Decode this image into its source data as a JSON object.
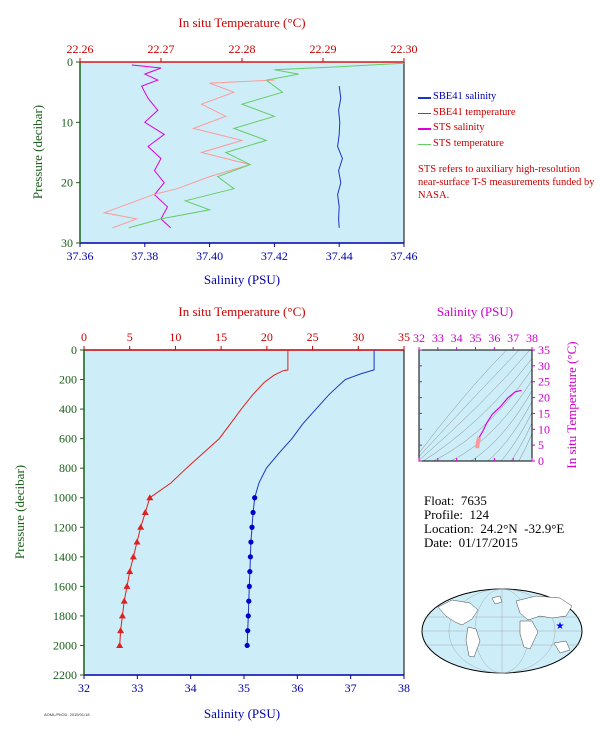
{
  "colors": {
    "plot_bg": "#cdeef8",
    "salinity_axis": "#0000aa",
    "temperature_axis": "#cc0000",
    "pressure_axis": "#1a5e1a",
    "inset_axis": "#cc00cc",
    "sbe_salinity": "#1a36c8",
    "sbe_temperature": "#e02020",
    "sts_salinity": "#dd00dd",
    "sts_temperature": "#66cc66",
    "sts_temp_pink": "#ff9999"
  },
  "legend": {
    "items": [
      {
        "label": "SBE41 salinity",
        "color": "#1a36c8"
      },
      {
        "label": "SBE41 temperature",
        "color": "#e02020"
      },
      {
        "label": "STS salinity",
        "color": "#dd00dd"
      },
      {
        "label": "STS temperature",
        "color": "#66cc66"
      }
    ],
    "note": "STS refers to auxiliary high-resolution near-surface T-S measurements funded by NASA."
  },
  "float_info": {
    "float": "Float:  7635",
    "profile": "Profile:  124",
    "location": "Location:  24.2°N  -32.9°E",
    "date": "Date:  01/17/2015"
  },
  "credit": "AOML/PhOD, 2015/01/18",
  "chart_data": [
    {
      "type": "line",
      "name": "near-surface profile",
      "top_axis_label": "In situ Temperature (°C)",
      "bottom_axis_label": "Salinity (PSU)",
      "ylabel": "Pressure (decibar)",
      "temp_lim": [
        22.26,
        22.3
      ],
      "temp_ticks": [
        "22.26",
        "22.27",
        "22.28",
        "22.29",
        "22.30"
      ],
      "sal_lim": [
        37.36,
        37.46
      ],
      "sal_ticks": [
        "37.36",
        "37.38",
        "37.40",
        "37.42",
        "37.44",
        "37.46"
      ],
      "ylim": [
        0,
        30
      ],
      "y_ticks": [
        "0",
        "10",
        "20",
        "30"
      ],
      "series": [
        {
          "key": "sbe_temperature",
          "axis": "temp",
          "points": [
            [
              22.26,
              0
            ],
            [
              22.3,
              0
            ]
          ]
        },
        {
          "key": "sbe_salinity",
          "axis": "sal",
          "points": [
            [
              37.44,
              4
            ],
            [
              37.4405,
              6
            ],
            [
              37.4398,
              8
            ],
            [
              37.4402,
              10
            ],
            [
              37.44,
              12
            ],
            [
              37.4395,
              14
            ],
            [
              37.441,
              16
            ],
            [
              37.4398,
              18
            ],
            [
              37.4405,
              20
            ],
            [
              37.4395,
              22
            ],
            [
              37.44,
              24
            ],
            [
              37.4398,
              26
            ],
            [
              37.44,
              27.5
            ]
          ]
        },
        {
          "key": "sts_salinity",
          "axis": "sal",
          "points": [
            [
              37.376,
              0.5
            ],
            [
              37.385,
              1
            ],
            [
              37.38,
              2
            ],
            [
              37.384,
              3
            ],
            [
              37.379,
              4
            ],
            [
              37.381,
              6
            ],
            [
              37.384,
              8
            ],
            [
              37.38,
              10
            ],
            [
              37.386,
              12
            ],
            [
              37.381,
              14
            ],
            [
              37.385,
              16
            ],
            [
              37.383,
              18
            ],
            [
              37.386,
              20
            ],
            [
              37.383,
              22
            ],
            [
              37.387,
              24
            ],
            [
              37.385,
              26
            ],
            [
              37.388,
              27.5
            ]
          ]
        },
        {
          "key": "sts_temp_pink",
          "axis": "temp",
          "points": [
            [
              22.284,
              3
            ],
            [
              22.276,
              3.5
            ],
            [
              22.279,
              5
            ],
            [
              22.275,
              7
            ],
            [
              22.278,
              9
            ],
            [
              22.274,
              11
            ],
            [
              22.28,
              13
            ],
            [
              22.275,
              15
            ],
            [
              22.281,
              17
            ],
            [
              22.276,
              19
            ],
            [
              22.272,
              21
            ],
            [
              22.269,
              22
            ],
            [
              22.266,
              23.5
            ],
            [
              22.263,
              25
            ],
            [
              22.267,
              26
            ],
            [
              22.264,
              27.5
            ]
          ]
        },
        {
          "key": "sts_temperature",
          "axis": "temp",
          "points": [
            [
              22.3,
              0.2
            ],
            [
              22.292,
              0.8
            ],
            [
              22.284,
              1.3
            ],
            [
              22.287,
              2
            ],
            [
              22.283,
              3
            ],
            [
              22.285,
              5
            ],
            [
              22.28,
              7
            ],
            [
              22.284,
              9
            ],
            [
              22.279,
              11
            ],
            [
              22.283,
              13
            ],
            [
              22.278,
              15
            ],
            [
              22.281,
              17
            ],
            [
              22.277,
              19
            ],
            [
              22.279,
              21
            ],
            [
              22.273,
              23
            ],
            [
              22.276,
              24.5
            ],
            [
              22.27,
              26
            ],
            [
              22.266,
              27.5
            ]
          ]
        }
      ]
    },
    {
      "type": "line",
      "name": "full-depth profile",
      "top_axis_label": "In situ Temperature (°C)",
      "bottom_axis_label": "Salinity (PSU)",
      "ylabel": "Pressure (decibar)",
      "temp_lim": [
        0,
        35
      ],
      "temp_ticks": [
        "0",
        "5",
        "10",
        "15",
        "20",
        "25",
        "30",
        "35"
      ],
      "sal_lim": [
        32,
        38
      ],
      "sal_ticks": [
        "32",
        "33",
        "34",
        "35",
        "36",
        "37",
        "38"
      ],
      "ylim": [
        0,
        2200
      ],
      "y_ticks": [
        "0",
        "200",
        "400",
        "600",
        "800",
        "1000",
        "1200",
        "1400",
        "1600",
        "1800",
        "2000",
        "2200"
      ],
      "series": [
        {
          "key": "sbe_temperature",
          "axis": "temp",
          "points": [
            [
              22.3,
              0
            ],
            [
              22.3,
              135
            ],
            [
              21.8,
              140
            ],
            [
              20.8,
              170
            ],
            [
              19.7,
              220
            ],
            [
              18.5,
              300
            ],
            [
              17.2,
              400
            ],
            [
              16.0,
              500
            ],
            [
              14.8,
              600
            ],
            [
              13.0,
              700
            ],
            [
              11.2,
              800
            ],
            [
              9.5,
              900
            ],
            [
              7.2,
              1000
            ],
            [
              6.7,
              1100
            ],
            [
              6.2,
              1200
            ],
            [
              5.8,
              1300
            ],
            [
              5.4,
              1400
            ],
            [
              5.0,
              1500
            ],
            [
              4.7,
              1600
            ],
            [
              4.4,
              1700
            ],
            [
              4.2,
              1800
            ],
            [
              4.0,
              1900
            ],
            [
              3.9,
              2000
            ]
          ]
        },
        {
          "key": "sbe_salinity",
          "axis": "sal",
          "points": [
            [
              37.44,
              0
            ],
            [
              37.44,
              135
            ],
            [
              37.2,
              160
            ],
            [
              36.9,
              200
            ],
            [
              36.6,
              300
            ],
            [
              36.35,
              400
            ],
            [
              36.1,
              500
            ],
            [
              35.9,
              600
            ],
            [
              35.65,
              700
            ],
            [
              35.42,
              800
            ],
            [
              35.28,
              900
            ],
            [
              35.2,
              1000
            ],
            [
              35.17,
              1100
            ],
            [
              35.15,
              1200
            ],
            [
              35.13,
              1300
            ],
            [
              35.12,
              1400
            ],
            [
              35.11,
              1500
            ],
            [
              35.1,
              1600
            ],
            [
              35.09,
              1700
            ],
            [
              35.08,
              1800
            ],
            [
              35.07,
              1900
            ],
            [
              35.06,
              2000
            ]
          ]
        }
      ]
    },
    {
      "type": "line",
      "name": "T-S diagram inset",
      "xlabel": "Salinity (PSU)",
      "ylabel": "In situ Temperature (°C)",
      "xlim": [
        32,
        38
      ],
      "ylim": [
        0,
        35
      ],
      "x_ticks": [
        "32",
        "33",
        "34",
        "35",
        "36",
        "37",
        "38"
      ],
      "y_ticks": [
        "0",
        "5",
        "10",
        "15",
        "20",
        "25",
        "30",
        "35"
      ],
      "series": [
        {
          "key": "sts_temp_pink",
          "points": [
            [
              35.1,
              4.0
            ],
            [
              35.1,
              5.0
            ],
            [
              35.15,
              6.5
            ],
            [
              35.2,
              7.5
            ]
          ]
        },
        {
          "key": "sts_salinity",
          "points": [
            [
              35.2,
              7.5
            ],
            [
              35.4,
              9.5
            ],
            [
              35.6,
              12.0
            ],
            [
              35.9,
              14.8
            ],
            [
              36.3,
              17.0
            ],
            [
              36.7,
              19.8
            ],
            [
              37.1,
              21.8
            ],
            [
              37.44,
              22.3
            ]
          ]
        }
      ]
    }
  ]
}
